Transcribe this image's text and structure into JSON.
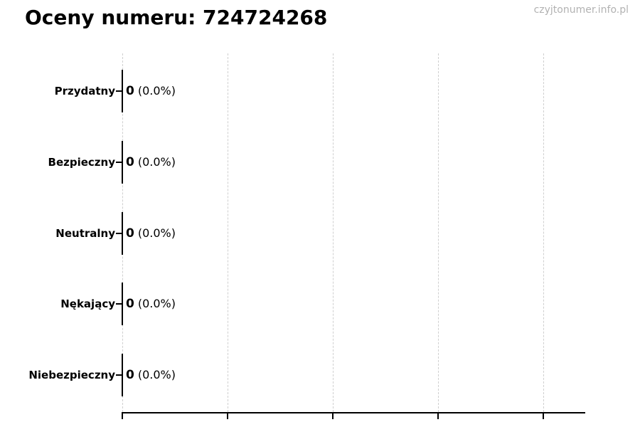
{
  "header": {
    "watermark": "czyjtonumer.info.pl"
  },
  "chart_data": {
    "type": "bar",
    "orientation": "horizontal",
    "title": "Oceny numeru: 724724268",
    "categories": [
      "Przydatny",
      "Bezpieczny",
      "Neutralny",
      "Nękający",
      "Niebezpieczny"
    ],
    "values": [
      0,
      0,
      0,
      0,
      0
    ],
    "percentages": [
      0.0,
      0.0,
      0.0,
      0.0,
      0.0
    ],
    "items": [
      {
        "label": "Przydatny",
        "count": "0",
        "percent": "(0.0%)"
      },
      {
        "label": "Bezpieczny",
        "count": "0",
        "percent": "(0.0%)"
      },
      {
        "label": "Neutralny",
        "count": "0",
        "percent": "(0.0%)"
      },
      {
        "label": "Nękający",
        "count": "0",
        "percent": "(0.0%)"
      },
      {
        "label": "Niebezpieczny",
        "count": "0",
        "percent": "(0.0%)"
      }
    ],
    "xlabel": "",
    "ylabel": "",
    "layout": {
      "grid": "vertical-dashed",
      "x_gridline_count": 5,
      "x_tick_labels_visible": false,
      "legend": "none",
      "colors": {
        "axis": "#000000",
        "gridline": "#cfcfcf",
        "text": "#000000",
        "watermark": "#b2b2b2",
        "background": "#ffffff"
      }
    }
  }
}
